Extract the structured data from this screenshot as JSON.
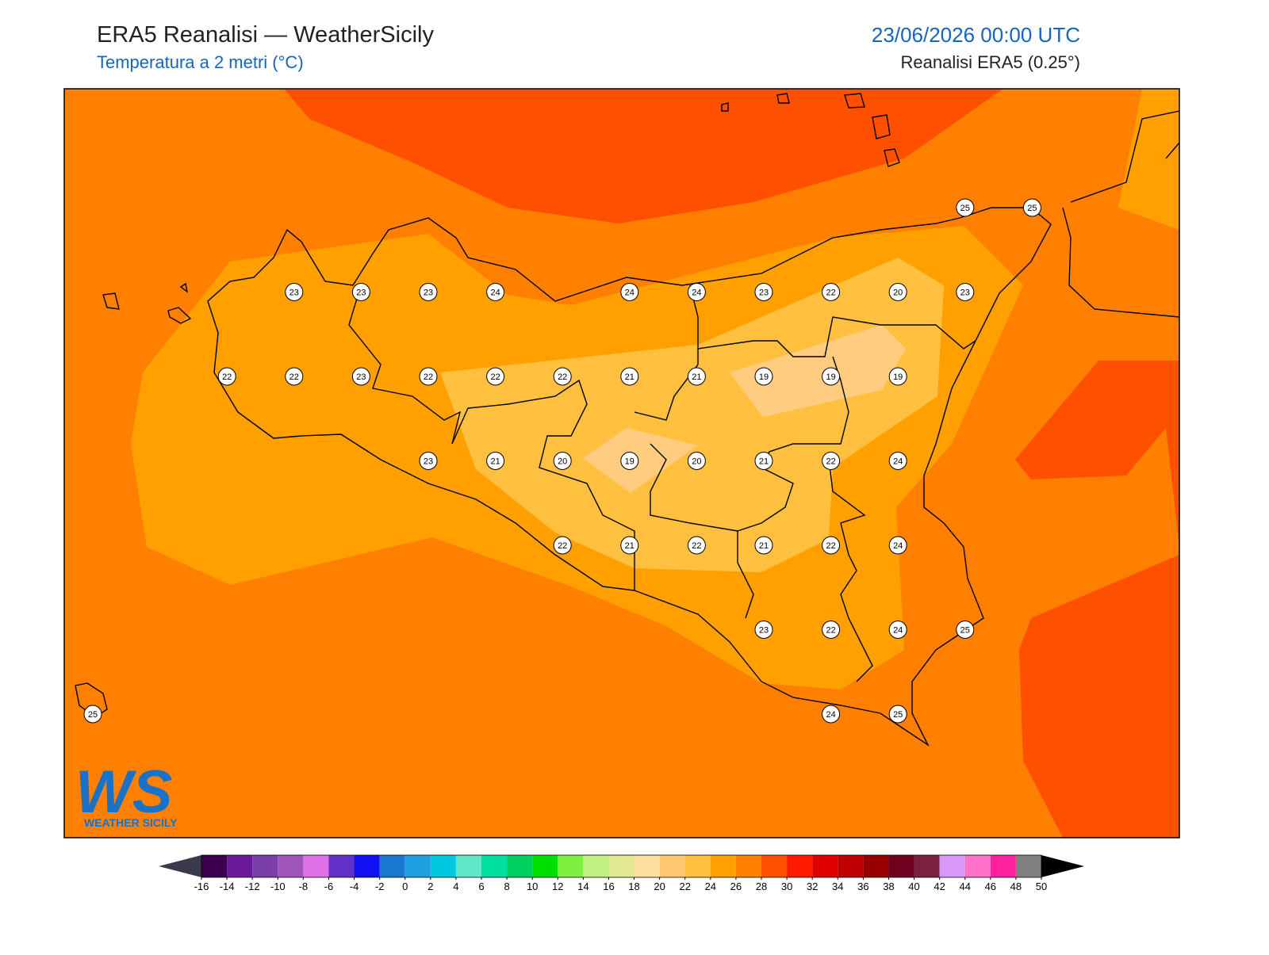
{
  "header": {
    "title": "ERA5 Reanalisi — WeatherSicily",
    "subtitle": "Temperatura a 2 metri (°C)",
    "datetime": "23/06/2026 00:00 UTC",
    "source": "Reanalisi ERA5 (0.25°)"
  },
  "map": {
    "station_grid": [
      [
        null,
        null,
        null,
        null,
        null,
        null,
        null,
        null,
        null,
        null,
        null,
        null,
        null,
        25,
        25
      ],
      [
        null,
        null,
        null,
        23,
        23,
        23,
        24,
        null,
        24,
        24,
        23,
        22,
        20,
        23,
        null
      ],
      [
        null,
        null,
        22,
        22,
        23,
        22,
        22,
        22,
        21,
        21,
        19,
        19,
        19,
        null,
        null
      ],
      [
        null,
        null,
        null,
        null,
        null,
        23,
        21,
        20,
        19,
        20,
        21,
        22,
        24,
        null,
        null
      ],
      [
        null,
        null,
        null,
        null,
        null,
        null,
        null,
        22,
        21,
        22,
        21,
        22,
        24,
        null,
        null
      ],
      [
        null,
        null,
        null,
        null,
        null,
        null,
        null,
        null,
        null,
        null,
        23,
        22,
        24,
        25,
        null
      ],
      [
        25,
        null,
        null,
        null,
        null,
        null,
        null,
        null,
        null,
        null,
        null,
        24,
        25,
        null,
        null
      ]
    ]
  },
  "colorbar": {
    "ticks": [
      -16,
      -14,
      -12,
      -10,
      -8,
      -6,
      -4,
      -2,
      0,
      2,
      4,
      6,
      8,
      10,
      12,
      14,
      16,
      18,
      20,
      22,
      24,
      26,
      28,
      30,
      32,
      34,
      36,
      38,
      40,
      42,
      44,
      46,
      48,
      50
    ],
    "colors": [
      "#3d0050",
      "#6a1a9a",
      "#7b3fa8",
      "#a055b8",
      "#e070e8",
      "#6030c8",
      "#1010f0",
      "#1878d0",
      "#1ea0e0",
      "#00c8e0",
      "#60e8c8",
      "#00e0a0",
      "#00d060",
      "#00e000",
      "#80f040",
      "#c0f080",
      "#e0e890",
      "#ffe0a0",
      "#ffc870",
      "#ffc040",
      "#ffa000",
      "#ff8000",
      "#ff5000",
      "#ff1a00",
      "#e00000",
      "#c00000",
      "#990000",
      "#6e0020",
      "#7a2040",
      "#d898f8",
      "#ff70c8",
      "#ff20a0",
      "#808080",
      "#404040"
    ],
    "under_color": "#3a3a4a",
    "over_color": "#000000"
  },
  "logo": {
    "text": "WS",
    "caption": "WEATHER SICILY"
  }
}
